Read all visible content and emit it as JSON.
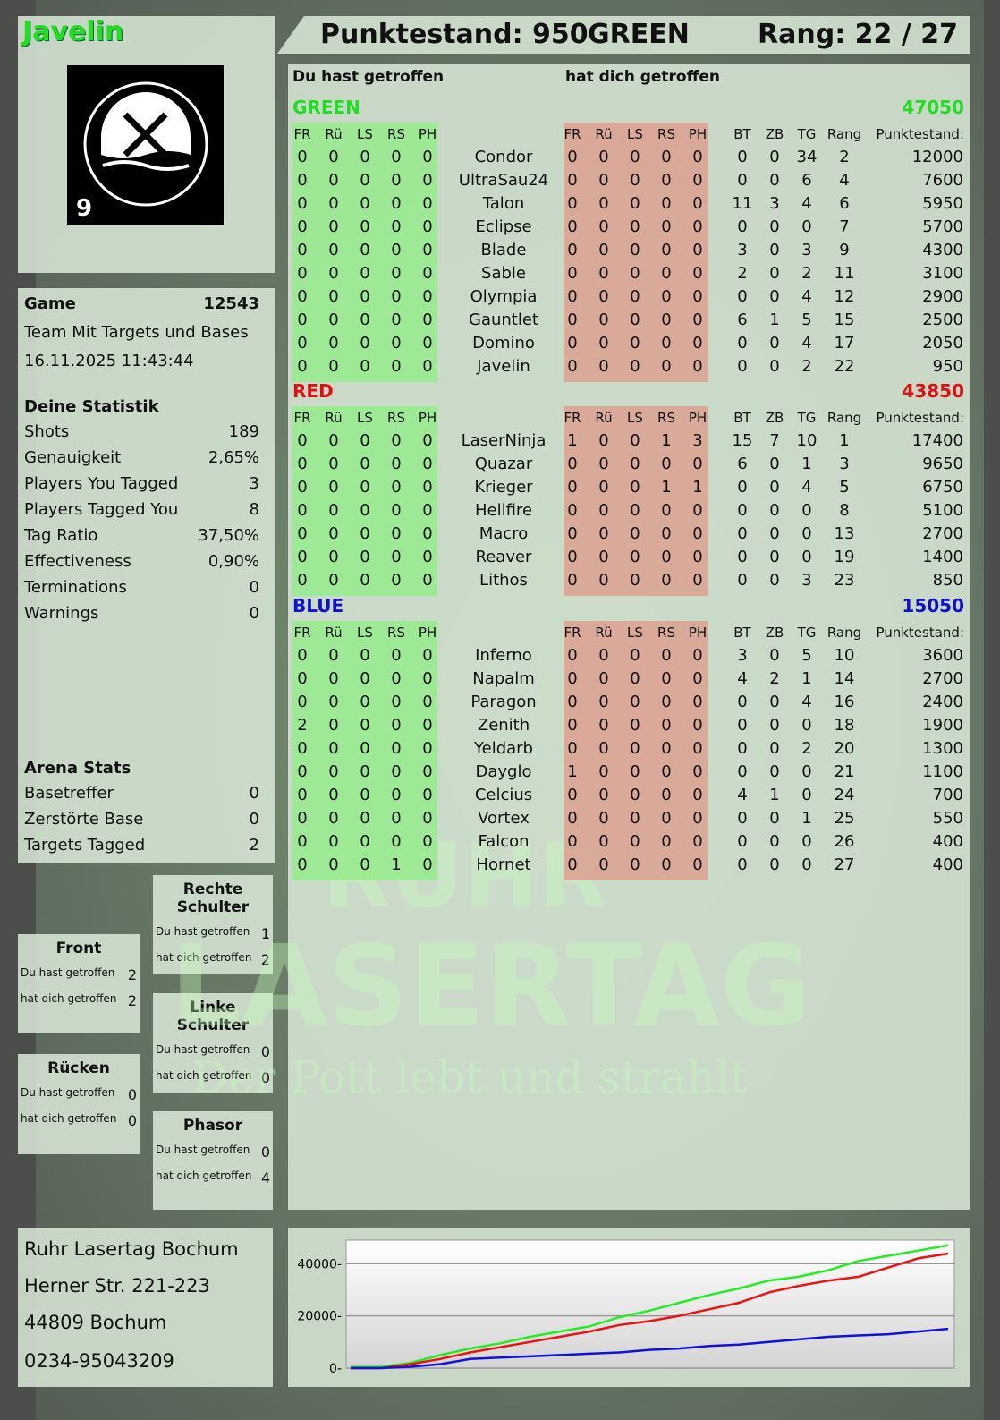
{
  "player": {
    "name": "Javelin",
    "score_label": "Punktestand: 950",
    "team": "GREEN",
    "rank_label": "Rang: 22 / 27",
    "logo_text": "RUHR LASERTAG",
    "logo_number": "9"
  },
  "watermark": {
    "line1": "RUHR",
    "line2": "LASERTAG",
    "slogan": "Der Pott lebt und strahlt"
  },
  "game": {
    "label": "Game",
    "id": "12543",
    "mode": "Team Mit Targets und Bases",
    "datetime": "16.11.2025 11:43:44"
  },
  "stats": {
    "title": "Deine Statistik",
    "items": [
      {
        "label": "Shots",
        "value": "189"
      },
      {
        "label": "Genauigkeit",
        "value": "2,65%"
      },
      {
        "label": "Players You Tagged",
        "value": "3"
      },
      {
        "label": "Players Tagged You",
        "value": "8"
      },
      {
        "label": "Tag Ratio",
        "value": "37,50%"
      },
      {
        "label": "Effectiveness",
        "value": "0,90%"
      },
      {
        "label": "Terminations",
        "value": "0"
      },
      {
        "label": "Warnings",
        "value": "0"
      }
    ]
  },
  "arena": {
    "title": "Arena Stats",
    "items": [
      {
        "label": "Basetreffer",
        "value": "0"
      },
      {
        "label": "Zerstörte Base",
        "value": "0"
      },
      {
        "label": "Targets Tagged",
        "value": "2"
      }
    ]
  },
  "zones": [
    {
      "title": "Rechte Schulter",
      "hit_label": "Du hast getroffen",
      "hit": "1",
      "got_label": "hat dich getroffen",
      "got": "2"
    },
    {
      "title": "Front",
      "hit_label": "Du hast getroffen",
      "hit": "2",
      "got_label": "hat dich getroffen",
      "got": "2"
    },
    {
      "title": "Linke Schulter",
      "hit_label": "Du hast getroffen",
      "hit": "0",
      "got_label": "hat dich getroffen",
      "got": "0"
    },
    {
      "title": "Rücken",
      "hit_label": "Du hast getroffen",
      "hit": "0",
      "got_label": "hat dich getroffen",
      "got": "0"
    },
    {
      "title": "Phasor",
      "hit_label": "Du hast getroffen",
      "hit": "0",
      "got_label": "hat dich getroffen",
      "got": "4"
    }
  ],
  "address": [
    "Ruhr Lasertag Bochum",
    "Herner Str. 221-223",
    "44809 Bochum",
    "0234-95043209"
  ],
  "table": {
    "you_hit_label": "Du hast getroffen",
    "hit_you_label": "hat dich getroffen",
    "headers_left": [
      "FR",
      "Rü",
      "LS",
      "RS",
      "PH"
    ],
    "headers_right": [
      "FR",
      "Rü",
      "LS",
      "RS",
      "PH"
    ],
    "headers_stats": [
      "BT",
      "ZB",
      "TG",
      "Rang",
      "Punktestand:"
    ],
    "teams": [
      {
        "name": "GREEN",
        "score": "47050",
        "color": "#22dd22",
        "players": [
          [
            "Condor",
            [
              0,
              0,
              0,
              0,
              0
            ],
            [
              0,
              0,
              0,
              0,
              0
            ],
            [
              0,
              0,
              34,
              2
            ],
            "12000"
          ],
          [
            "UltraSau24",
            [
              0,
              0,
              0,
              0,
              0
            ],
            [
              0,
              0,
              0,
              0,
              0
            ],
            [
              0,
              0,
              6,
              4
            ],
            "7600"
          ],
          [
            "Talon",
            [
              0,
              0,
              0,
              0,
              0
            ],
            [
              0,
              0,
              0,
              0,
              0
            ],
            [
              11,
              3,
              4,
              6
            ],
            "5950"
          ],
          [
            "Eclipse",
            [
              0,
              0,
              0,
              0,
              0
            ],
            [
              0,
              0,
              0,
              0,
              0
            ],
            [
              0,
              0,
              0,
              7
            ],
            "5700"
          ],
          [
            "Blade",
            [
              0,
              0,
              0,
              0,
              0
            ],
            [
              0,
              0,
              0,
              0,
              0
            ],
            [
              3,
              0,
              3,
              9
            ],
            "4300"
          ],
          [
            "Sable",
            [
              0,
              0,
              0,
              0,
              0
            ],
            [
              0,
              0,
              0,
              0,
              0
            ],
            [
              2,
              0,
              2,
              11
            ],
            "3100"
          ],
          [
            "Olympia",
            [
              0,
              0,
              0,
              0,
              0
            ],
            [
              0,
              0,
              0,
              0,
              0
            ],
            [
              0,
              0,
              4,
              12
            ],
            "2900"
          ],
          [
            "Gauntlet",
            [
              0,
              0,
              0,
              0,
              0
            ],
            [
              0,
              0,
              0,
              0,
              0
            ],
            [
              6,
              1,
              5,
              15
            ],
            "2500"
          ],
          [
            "Domino",
            [
              0,
              0,
              0,
              0,
              0
            ],
            [
              0,
              0,
              0,
              0,
              0
            ],
            [
              0,
              0,
              4,
              17
            ],
            "2050"
          ],
          [
            "Javelin",
            [
              0,
              0,
              0,
              0,
              0
            ],
            [
              0,
              0,
              0,
              0,
              0
            ],
            [
              0,
              0,
              2,
              22
            ],
            "950"
          ]
        ]
      },
      {
        "name": "RED",
        "score": "43850",
        "color": "#dd1111",
        "players": [
          [
            "LaserNinja",
            [
              0,
              0,
              0,
              0,
              0
            ],
            [
              1,
              0,
              0,
              1,
              3
            ],
            [
              15,
              7,
              10,
              1
            ],
            "17400"
          ],
          [
            "Quazar",
            [
              0,
              0,
              0,
              0,
              0
            ],
            [
              0,
              0,
              0,
              0,
              0
            ],
            [
              6,
              0,
              1,
              3
            ],
            "9650"
          ],
          [
            "Krieger",
            [
              0,
              0,
              0,
              0,
              0
            ],
            [
              0,
              0,
              0,
              1,
              1
            ],
            [
              0,
              0,
              4,
              5
            ],
            "6750"
          ],
          [
            "Hellfire",
            [
              0,
              0,
              0,
              0,
              0
            ],
            [
              0,
              0,
              0,
              0,
              0
            ],
            [
              0,
              0,
              0,
              8
            ],
            "5100"
          ],
          [
            "Macro",
            [
              0,
              0,
              0,
              0,
              0
            ],
            [
              0,
              0,
              0,
              0,
              0
            ],
            [
              0,
              0,
              0,
              13
            ],
            "2700"
          ],
          [
            "Reaver",
            [
              0,
              0,
              0,
              0,
              0
            ],
            [
              0,
              0,
              0,
              0,
              0
            ],
            [
              0,
              0,
              0,
              19
            ],
            "1400"
          ],
          [
            "Lithos",
            [
              0,
              0,
              0,
              0,
              0
            ],
            [
              0,
              0,
              0,
              0,
              0
            ],
            [
              0,
              0,
              3,
              23
            ],
            "850"
          ]
        ]
      },
      {
        "name": "BLUE",
        "score": "15050",
        "color": "#1111cc",
        "players": [
          [
            "Inferno",
            [
              0,
              0,
              0,
              0,
              0
            ],
            [
              0,
              0,
              0,
              0,
              0
            ],
            [
              3,
              0,
              5,
              10
            ],
            "3600"
          ],
          [
            "Napalm",
            [
              0,
              0,
              0,
              0,
              0
            ],
            [
              0,
              0,
              0,
              0,
              0
            ],
            [
              4,
              2,
              1,
              14
            ],
            "2700"
          ],
          [
            "Paragon",
            [
              0,
              0,
              0,
              0,
              0
            ],
            [
              0,
              0,
              0,
              0,
              0
            ],
            [
              0,
              0,
              4,
              16
            ],
            "2400"
          ],
          [
            "Zenith",
            [
              2,
              0,
              0,
              0,
              0
            ],
            [
              0,
              0,
              0,
              0,
              0
            ],
            [
              0,
              0,
              0,
              18
            ],
            "1900"
          ],
          [
            "Yeldarb",
            [
              0,
              0,
              0,
              0,
              0
            ],
            [
              0,
              0,
              0,
              0,
              0
            ],
            [
              0,
              0,
              2,
              20
            ],
            "1300"
          ],
          [
            "Dayglo",
            [
              0,
              0,
              0,
              0,
              0
            ],
            [
              1,
              0,
              0,
              0,
              0
            ],
            [
              0,
              0,
              0,
              21
            ],
            "1100"
          ],
          [
            "Celcius",
            [
              0,
              0,
              0,
              0,
              0
            ],
            [
              0,
              0,
              0,
              0,
              0
            ],
            [
              4,
              1,
              0,
              24
            ],
            "700"
          ],
          [
            "Vortex",
            [
              0,
              0,
              0,
              0,
              0
            ],
            [
              0,
              0,
              0,
              0,
              0
            ],
            [
              0,
              0,
              1,
              25
            ],
            "550"
          ],
          [
            "Falcon",
            [
              0,
              0,
              0,
              0,
              0
            ],
            [
              0,
              0,
              0,
              0,
              0
            ],
            [
              0,
              0,
              0,
              26
            ],
            "400"
          ],
          [
            "Hornet",
            [
              0,
              0,
              0,
              1,
              0
            ],
            [
              0,
              0,
              0,
              0,
              0
            ],
            [
              0,
              0,
              0,
              27
            ],
            "400"
          ]
        ]
      }
    ]
  },
  "chart_data": {
    "type": "line",
    "ylim": [
      0,
      49000
    ],
    "yticks": [
      0,
      20000,
      40000
    ],
    "ytick_labels": [
      "0",
      "20000",
      "40000"
    ],
    "grid": true,
    "series": [
      {
        "color": "#22ee22",
        "values": [
          500,
          500,
          2000,
          5000,
          7500,
          9500,
          12000,
          14000,
          16000,
          19500,
          22000,
          25000,
          28000,
          30500,
          33500,
          35000,
          37500,
          41000,
          43000,
          45000,
          47050
        ]
      },
      {
        "color": "#ee1111",
        "values": [
          0,
          0,
          1500,
          3500,
          6000,
          8000,
          10000,
          12000,
          14000,
          16500,
          18000,
          20000,
          22500,
          25000,
          29000,
          31500,
          33500,
          35000,
          38500,
          42000,
          43850
        ]
      },
      {
        "color": "#1111dd",
        "values": [
          0,
          0,
          500,
          1500,
          3500,
          4000,
          4500,
          5000,
          5500,
          6000,
          7000,
          7500,
          8500,
          9000,
          10000,
          11000,
          12000,
          12500,
          13000,
          14000,
          15050
        ]
      }
    ]
  }
}
